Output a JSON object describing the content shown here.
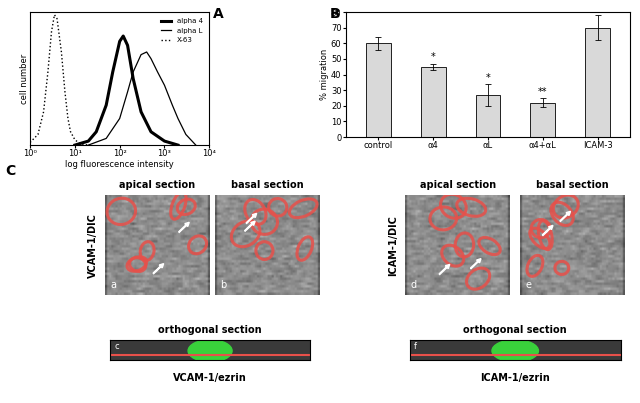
{
  "chart_data": [
    {
      "type": "line",
      "title": "A",
      "x_label": "log fluorescence intensity",
      "y_label": "cell number",
      "log": "x",
      "legend": "upper right",
      "tick_labels": "x",
      "xlim": [
        1,
        10000
      ],
      "xticks": [
        {
          "value": 1,
          "label": "10⁰"
        },
        {
          "value": 10,
          "label": "10¹"
        },
        {
          "value": 100,
          "label": "10²"
        },
        {
          "value": 1000,
          "label": "10³"
        },
        {
          "value": 10000,
          "label": "10⁴"
        }
      ],
      "ylim": [
        0,
        100
      ],
      "series": [
        {
          "name": "alpha 4",
          "color": "#000000",
          "line_style": "solid",
          "x": [
            10,
            20,
            30,
            50,
            70,
            100,
            120,
            150,
            200,
            300,
            500,
            1000,
            2000
          ],
          "values": [
            0,
            3,
            10,
            30,
            55,
            78,
            82,
            75,
            50,
            25,
            10,
            3,
            0
          ]
        },
        {
          "name": "alpha L",
          "color": "#000000",
          "line_style": "solid",
          "x": [
            20,
            50,
            100,
            150,
            200,
            300,
            400,
            500,
            700,
            1000,
            1500,
            2000,
            3000,
            5000
          ],
          "values": [
            0,
            5,
            20,
            40,
            55,
            68,
            70,
            65,
            55,
            45,
            30,
            20,
            8,
            0
          ]
        },
        {
          "name": "X-63",
          "color": "#000000",
          "line_style": "dotted",
          "x": [
            1,
            1.5,
            2,
            2.5,
            3,
            3.5,
            4,
            5,
            6,
            7,
            8,
            10,
            13,
            20
          ],
          "values": [
            2,
            8,
            25,
            55,
            85,
            98,
            95,
            70,
            40,
            20,
            10,
            4,
            1,
            0
          ]
        }
      ]
    },
    {
      "type": "bar",
      "title": "B",
      "y_label": "% migration",
      "categories": [
        "control",
        "α4",
        "αL",
        "α4+αL",
        "ICAM-3"
      ],
      "values": [
        60,
        45,
        27,
        22,
        70
      ],
      "errors": [
        4,
        2,
        7,
        3,
        8
      ],
      "color": "#d9d9d9",
      "ylim": [
        0,
        80
      ],
      "yticks": [
        0,
        10,
        20,
        30,
        40,
        50,
        60,
        70,
        80
      ],
      "annotations": [
        {
          "category": "α4",
          "text": "*"
        },
        {
          "category": "αL",
          "text": "*"
        },
        {
          "category": "α4+αL",
          "text": "**"
        }
      ]
    }
  ],
  "panel_c": {
    "label": "C",
    "rows": [
      {
        "name": "VCAM-1/DIC",
        "images": [
          {
            "title": "apical section",
            "letter": "a"
          },
          {
            "title": "basal section",
            "letter": "b"
          }
        ],
        "orthogonal": {
          "title": "orthogonal section",
          "letter": "c",
          "caption": "VCAM-1/ezrin"
        }
      },
      {
        "name": "ICAM-1/DIC",
        "images": [
          {
            "title": "apical section",
            "letter": "d"
          },
          {
            "title": "basal section",
            "letter": "e"
          }
        ],
        "orthogonal": {
          "title": "orthogonal section",
          "letter": "f",
          "caption": "ICAM-1/ezrin"
        }
      }
    ]
  }
}
